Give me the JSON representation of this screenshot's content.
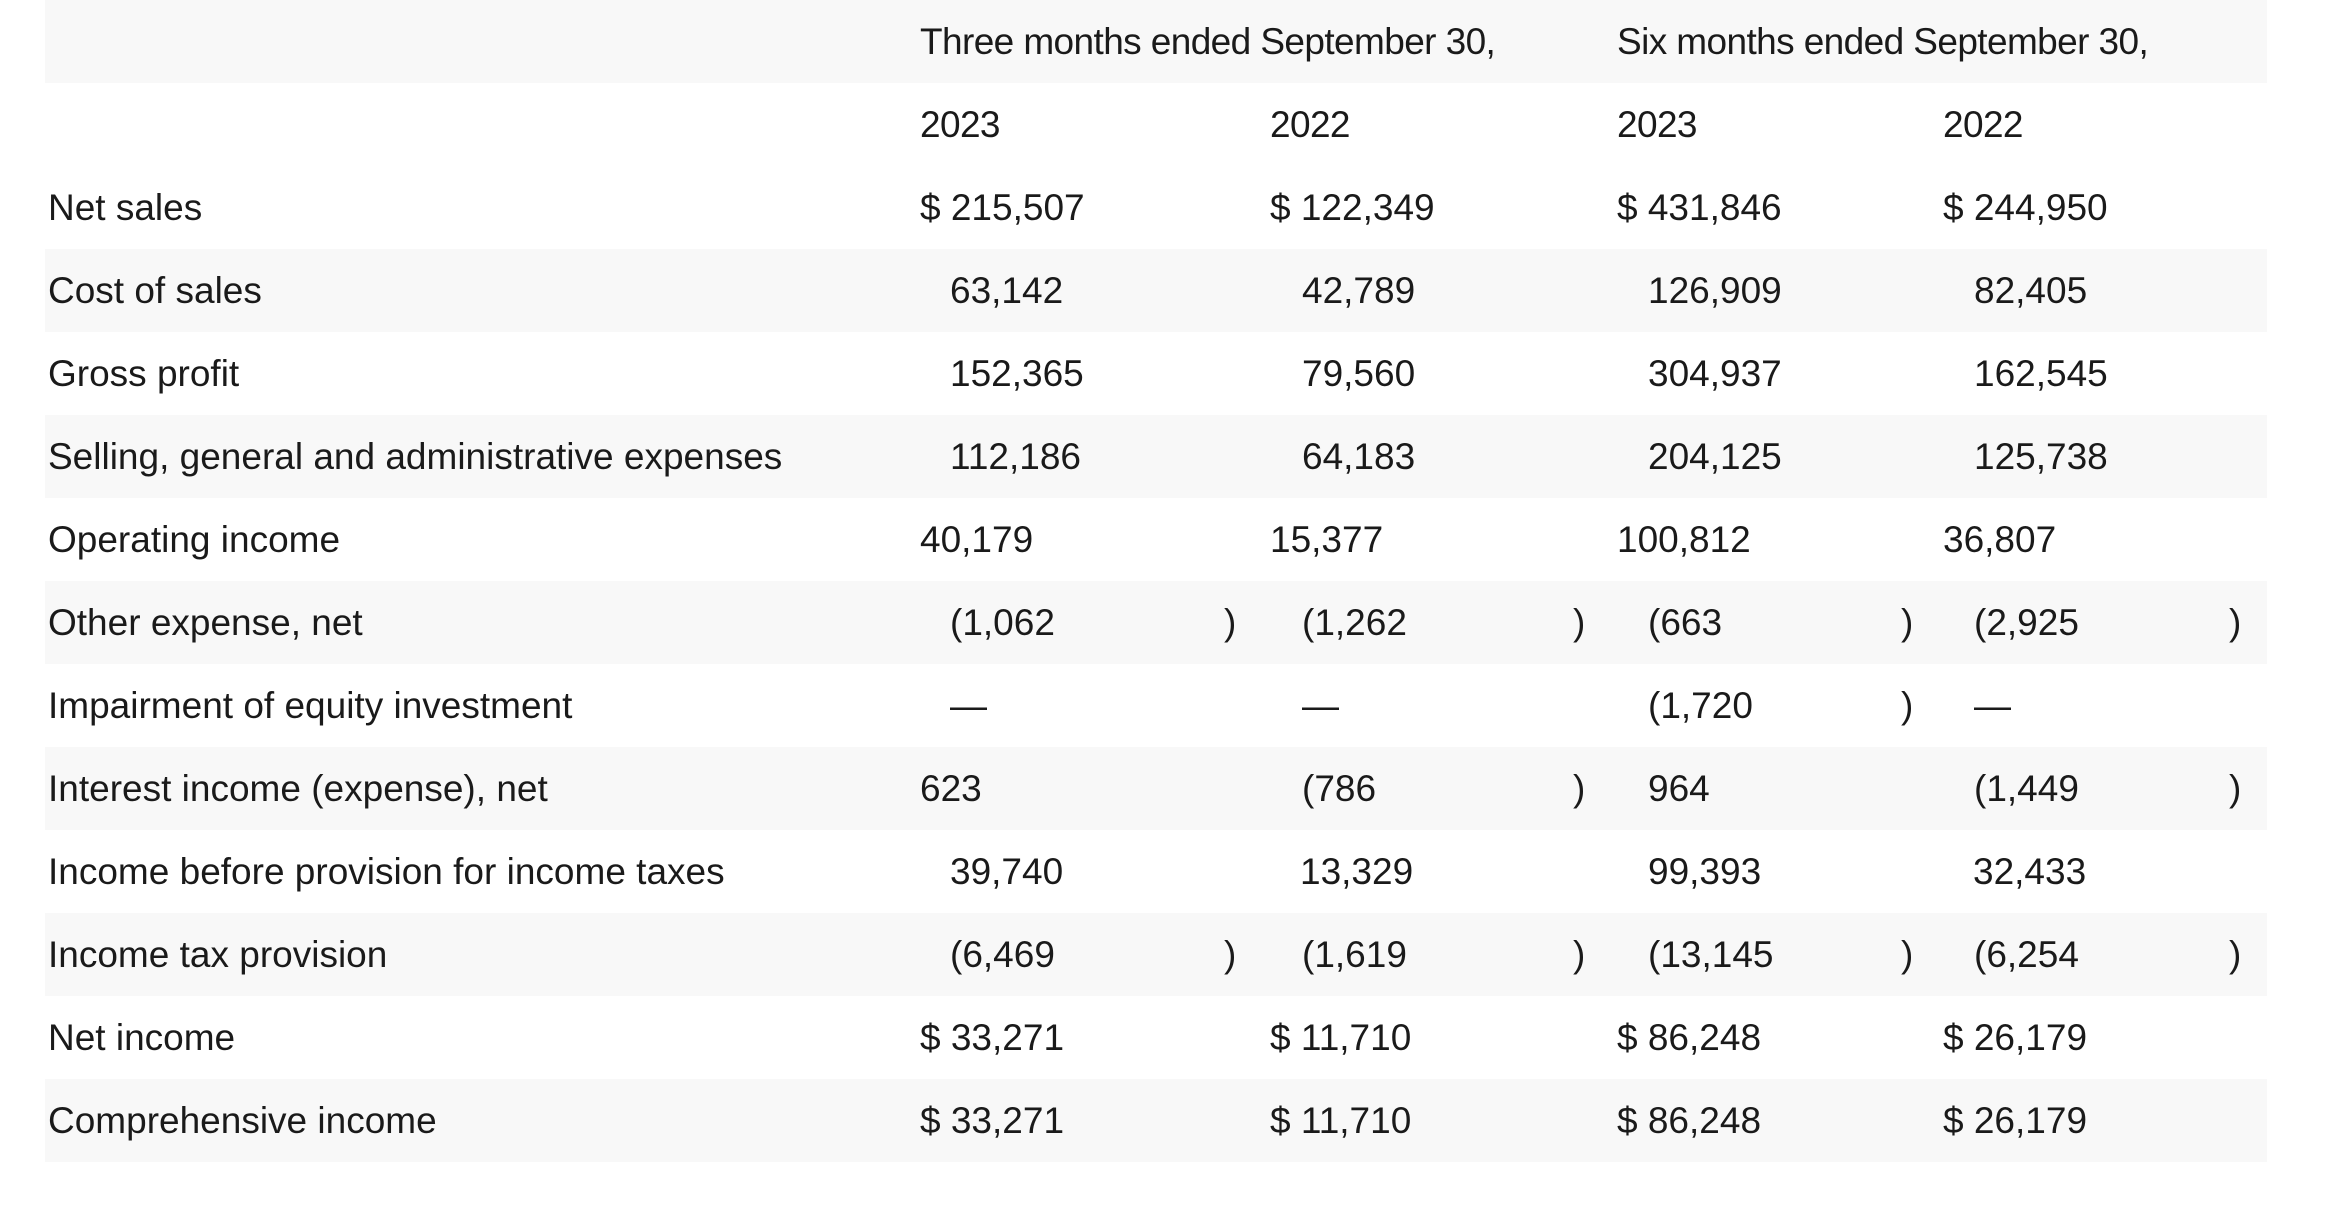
{
  "table": {
    "header": {
      "three_months": "Three months ended September 30,",
      "six_months": "Six months ended September 30,",
      "years": [
        "2023",
        "2022",
        "2023",
        "2022"
      ]
    },
    "rows": [
      {
        "label": "Net sales",
        "values": [
          "$ 215,507",
          "$ 122,349",
          "$ 431,846",
          "$ 244,950"
        ],
        "dollar": true,
        "neg": [
          false,
          false,
          false,
          false
        ]
      },
      {
        "label": "Cost of sales",
        "values": [
          "63,142",
          "42,789",
          "126,909",
          "82,405"
        ],
        "dollar": false,
        "neg": [
          false,
          false,
          false,
          false
        ]
      },
      {
        "label": "Gross profit",
        "values": [
          "152,365",
          "79,560",
          "304,937",
          "162,545"
        ],
        "dollar": false,
        "neg": [
          false,
          false,
          false,
          false
        ]
      },
      {
        "label": "Selling, general and administrative expenses",
        "values": [
          "112,186",
          "64,183",
          "204,125",
          "125,738"
        ],
        "dollar": false,
        "neg": [
          false,
          false,
          false,
          false
        ]
      },
      {
        "label": "Operating income",
        "values": [
          "40,179",
          "15,377",
          "100,812",
          "36,807"
        ],
        "dollar": false,
        "neg": [
          false,
          false,
          false,
          false
        ]
      },
      {
        "label": "Other expense, net",
        "values": [
          "(1,062",
          "(1,262",
          "(663",
          "(2,925"
        ],
        "dollar": false,
        "neg": [
          true,
          true,
          true,
          true
        ]
      },
      {
        "label": "Impairment of equity investment",
        "values": [
          "—",
          "—",
          "(1,720",
          "—"
        ],
        "dollar": false,
        "neg": [
          false,
          false,
          true,
          false
        ]
      },
      {
        "label": "Interest income (expense), net",
        "values": [
          "623",
          "(786",
          "964",
          "(1,449"
        ],
        "dollar": false,
        "neg": [
          false,
          true,
          false,
          true
        ]
      },
      {
        "label": "Income before provision for income taxes",
        "values": [
          "39,740",
          "13,329",
          "99,393",
          "32,433"
        ],
        "dollar": false,
        "neg": [
          false,
          false,
          false,
          false
        ]
      },
      {
        "label": "Income tax provision",
        "values": [
          "(6,469",
          "(1,619",
          "(13,145",
          "(6,254"
        ],
        "dollar": false,
        "neg": [
          true,
          true,
          true,
          true
        ]
      },
      {
        "label": "Net income",
        "values": [
          "$ 33,271",
          "$ 11,710",
          "$ 86,248",
          "$ 26,179"
        ],
        "dollar": true,
        "neg": [
          false,
          false,
          false,
          false
        ]
      },
      {
        "label": "Comprehensive income",
        "values": [
          "$ 33,271",
          "$ 11,710",
          "$ 86,248",
          "$ 26,179"
        ],
        "dollar": true,
        "neg": [
          false,
          false,
          false,
          false
        ]
      }
    ],
    "close_paren": ")"
  }
}
